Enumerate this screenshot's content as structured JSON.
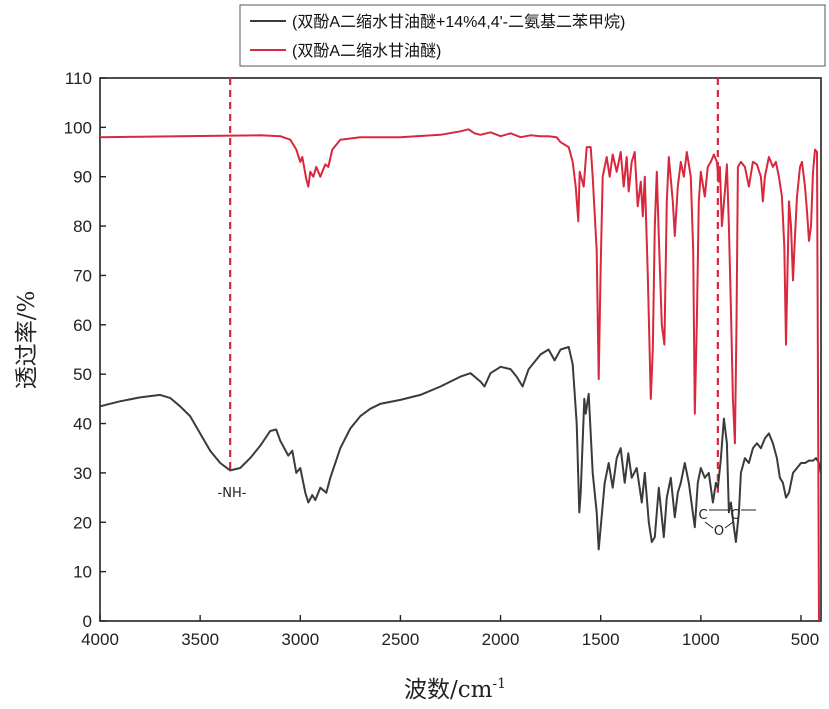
{
  "chart_data": {
    "type": "line",
    "xlabel": "波数/cm",
    "xlabel_sup": "-1",
    "ylabel": "透过率/%",
    "xlim": [
      4000,
      400
    ],
    "ylim": [
      0,
      110
    ],
    "x_ticks": [
      4000,
      3500,
      3000,
      2500,
      2000,
      1500,
      1000,
      500
    ],
    "y_ticks": [
      0,
      10,
      20,
      30,
      40,
      50,
      60,
      70,
      80,
      90,
      100,
      110
    ],
    "x_reversed": true,
    "grid": false,
    "legend_position": "top-right",
    "series": [
      {
        "name": "(双酚A二缩水甘油醚+14%4,4'-二氨基二苯甲烷)",
        "color": "#3b3b3b",
        "points": [
          [
            4000,
            43.5
          ],
          [
            3900,
            44.5
          ],
          [
            3800,
            45.3
          ],
          [
            3700,
            45.8
          ],
          [
            3650,
            45.2
          ],
          [
            3600,
            43.5
          ],
          [
            3550,
            41.5
          ],
          [
            3500,
            38
          ],
          [
            3450,
            34.5
          ],
          [
            3400,
            32
          ],
          [
            3350,
            30.5
          ],
          [
            3300,
            31
          ],
          [
            3250,
            33
          ],
          [
            3200,
            35.5
          ],
          [
            3150,
            38.5
          ],
          [
            3120,
            38.8
          ],
          [
            3100,
            36.5
          ],
          [
            3060,
            33.5
          ],
          [
            3040,
            34.5
          ],
          [
            3020,
            30
          ],
          [
            3000,
            31
          ],
          [
            2975,
            26
          ],
          [
            2960,
            24
          ],
          [
            2940,
            25.5
          ],
          [
            2925,
            24.5
          ],
          [
            2900,
            27
          ],
          [
            2870,
            26
          ],
          [
            2850,
            29
          ],
          [
            2800,
            35
          ],
          [
            2750,
            39
          ],
          [
            2700,
            41.5
          ],
          [
            2650,
            43
          ],
          [
            2600,
            44
          ],
          [
            2500,
            44.8
          ],
          [
            2400,
            45.8
          ],
          [
            2300,
            47.5
          ],
          [
            2200,
            49.5
          ],
          [
            2150,
            50.2
          ],
          [
            2100,
            48.5
          ],
          [
            2080,
            47.5
          ],
          [
            2050,
            50.2
          ],
          [
            2000,
            51.5
          ],
          [
            1950,
            51
          ],
          [
            1920,
            49.5
          ],
          [
            1890,
            47.5
          ],
          [
            1860,
            51
          ],
          [
            1800,
            54
          ],
          [
            1760,
            55
          ],
          [
            1730,
            52.8
          ],
          [
            1700,
            55
          ],
          [
            1660,
            55.5
          ],
          [
            1640,
            52
          ],
          [
            1620,
            40
          ],
          [
            1607,
            22
          ],
          [
            1600,
            26
          ],
          [
            1582,
            45
          ],
          [
            1575,
            42
          ],
          [
            1560,
            46
          ],
          [
            1540,
            30
          ],
          [
            1520,
            22
          ],
          [
            1510,
            14.5
          ],
          [
            1500,
            19
          ],
          [
            1480,
            28
          ],
          [
            1460,
            32
          ],
          [
            1440,
            27
          ],
          [
            1420,
            33
          ],
          [
            1400,
            35
          ],
          [
            1380,
            28
          ],
          [
            1362,
            34
          ],
          [
            1345,
            29
          ],
          [
            1320,
            31
          ],
          [
            1295,
            24
          ],
          [
            1280,
            30
          ],
          [
            1260,
            20
          ],
          [
            1245,
            16
          ],
          [
            1230,
            17
          ],
          [
            1210,
            27
          ],
          [
            1185,
            17
          ],
          [
            1170,
            25
          ],
          [
            1150,
            29
          ],
          [
            1130,
            21
          ],
          [
            1115,
            26
          ],
          [
            1100,
            28
          ],
          [
            1080,
            32
          ],
          [
            1060,
            28
          ],
          [
            1040,
            22
          ],
          [
            1030,
            19
          ],
          [
            1015,
            28
          ],
          [
            1000,
            31
          ],
          [
            980,
            29
          ],
          [
            960,
            30
          ],
          [
            940,
            24
          ],
          [
            925,
            28
          ],
          [
            915,
            27
          ],
          [
            900,
            33
          ],
          [
            885,
            41
          ],
          [
            870,
            36
          ],
          [
            860,
            22
          ],
          [
            850,
            24
          ],
          [
            835,
            19
          ],
          [
            825,
            16
          ],
          [
            810,
            22
          ],
          [
            800,
            30
          ],
          [
            780,
            33
          ],
          [
            760,
            32
          ],
          [
            740,
            35
          ],
          [
            720,
            36
          ],
          [
            700,
            35
          ],
          [
            680,
            37
          ],
          [
            660,
            38
          ],
          [
            640,
            36
          ],
          [
            620,
            33
          ],
          [
            605,
            29
          ],
          [
            590,
            28
          ],
          [
            575,
            25
          ],
          [
            560,
            26
          ],
          [
            540,
            30
          ],
          [
            520,
            31
          ],
          [
            500,
            32
          ],
          [
            480,
            32
          ],
          [
            460,
            32.5
          ],
          [
            440,
            32.5
          ],
          [
            425,
            33
          ],
          [
            410,
            32
          ],
          [
            400,
            30
          ]
        ]
      },
      {
        "name": "(双酚A二缩水甘油醚)",
        "color": "#d8283d",
        "points": [
          [
            4000,
            98
          ],
          [
            3800,
            98.1
          ],
          [
            3600,
            98.2
          ],
          [
            3400,
            98.3
          ],
          [
            3200,
            98.4
          ],
          [
            3100,
            98.2
          ],
          [
            3050,
            97.5
          ],
          [
            3020,
            95.5
          ],
          [
            3000,
            93
          ],
          [
            2990,
            94
          ],
          [
            2970,
            89.5
          ],
          [
            2960,
            88
          ],
          [
            2950,
            91
          ],
          [
            2935,
            90
          ],
          [
            2920,
            92
          ],
          [
            2900,
            90
          ],
          [
            2875,
            92.5
          ],
          [
            2860,
            92
          ],
          [
            2840,
            95.5
          ],
          [
            2800,
            97.5
          ],
          [
            2700,
            98
          ],
          [
            2500,
            98
          ],
          [
            2300,
            98.5
          ],
          [
            2200,
            99.2
          ],
          [
            2160,
            99.6
          ],
          [
            2130,
            98.8
          ],
          [
            2100,
            98.5
          ],
          [
            2050,
            99
          ],
          [
            2000,
            98.2
          ],
          [
            1950,
            98.8
          ],
          [
            1900,
            98
          ],
          [
            1850,
            98.4
          ],
          [
            1800,
            98.2
          ],
          [
            1760,
            98.2
          ],
          [
            1720,
            98
          ],
          [
            1700,
            97
          ],
          [
            1660,
            96
          ],
          [
            1640,
            93
          ],
          [
            1625,
            88
          ],
          [
            1612,
            81
          ],
          [
            1605,
            91
          ],
          [
            1585,
            88
          ],
          [
            1570,
            96
          ],
          [
            1550,
            96
          ],
          [
            1540,
            90
          ],
          [
            1520,
            75
          ],
          [
            1510,
            49
          ],
          [
            1500,
            72
          ],
          [
            1490,
            90
          ],
          [
            1470,
            94
          ],
          [
            1455,
            90
          ],
          [
            1440,
            94.5
          ],
          [
            1420,
            91
          ],
          [
            1400,
            95
          ],
          [
            1385,
            88
          ],
          [
            1370,
            94
          ],
          [
            1360,
            87
          ],
          [
            1345,
            93
          ],
          [
            1330,
            95
          ],
          [
            1315,
            84
          ],
          [
            1300,
            89
          ],
          [
            1290,
            82
          ],
          [
            1280,
            90
          ],
          [
            1265,
            70
          ],
          [
            1250,
            45
          ],
          [
            1240,
            55
          ],
          [
            1230,
            80
          ],
          [
            1220,
            91
          ],
          [
            1210,
            78
          ],
          [
            1195,
            60
          ],
          [
            1182,
            56
          ],
          [
            1170,
            85
          ],
          [
            1160,
            94
          ],
          [
            1140,
            85
          ],
          [
            1130,
            78
          ],
          [
            1115,
            88
          ],
          [
            1100,
            93
          ],
          [
            1085,
            90
          ],
          [
            1070,
            95
          ],
          [
            1050,
            90
          ],
          [
            1038,
            75
          ],
          [
            1030,
            42
          ],
          [
            1020,
            60
          ],
          [
            1010,
            85
          ],
          [
            1000,
            91
          ],
          [
            980,
            86
          ],
          [
            965,
            92
          ],
          [
            950,
            93
          ],
          [
            935,
            94.5
          ],
          [
            920,
            93
          ],
          [
            912,
            89
          ],
          [
            905,
            92
          ],
          [
            895,
            80
          ],
          [
            880,
            87
          ],
          [
            870,
            92.5
          ],
          [
            860,
            80
          ],
          [
            848,
            60
          ],
          [
            840,
            45
          ],
          [
            830,
            36
          ],
          [
            822,
            60
          ],
          [
            815,
            92
          ],
          [
            800,
            93
          ],
          [
            780,
            92
          ],
          [
            760,
            88
          ],
          [
            740,
            93
          ],
          [
            720,
            92.5
          ],
          [
            700,
            90
          ],
          [
            690,
            85
          ],
          [
            680,
            90
          ],
          [
            660,
            94
          ],
          [
            640,
            92
          ],
          [
            625,
            93
          ],
          [
            610,
            90
          ],
          [
            595,
            86
          ],
          [
            583,
            76
          ],
          [
            575,
            56
          ],
          [
            568,
            70
          ],
          [
            560,
            85
          ],
          [
            550,
            80
          ],
          [
            540,
            69
          ],
          [
            530,
            78
          ],
          [
            520,
            86
          ],
          [
            505,
            92
          ],
          [
            495,
            93
          ],
          [
            480,
            88
          ],
          [
            470,
            83
          ],
          [
            460,
            77
          ],
          [
            450,
            80
          ],
          [
            440,
            91
          ],
          [
            430,
            95.5
          ],
          [
            420,
            95
          ],
          [
            410,
            0
          ]
        ]
      }
    ],
    "reference_lines": [
      {
        "x": 3350,
        "label": "-NH-",
        "color": "#d8283d",
        "dash": "dashed"
      },
      {
        "x": 915,
        "label_top": "C",
        "label_mid": "C",
        "label_bottom": "O",
        "color": "#d8283d",
        "dash": "dashed"
      }
    ]
  }
}
